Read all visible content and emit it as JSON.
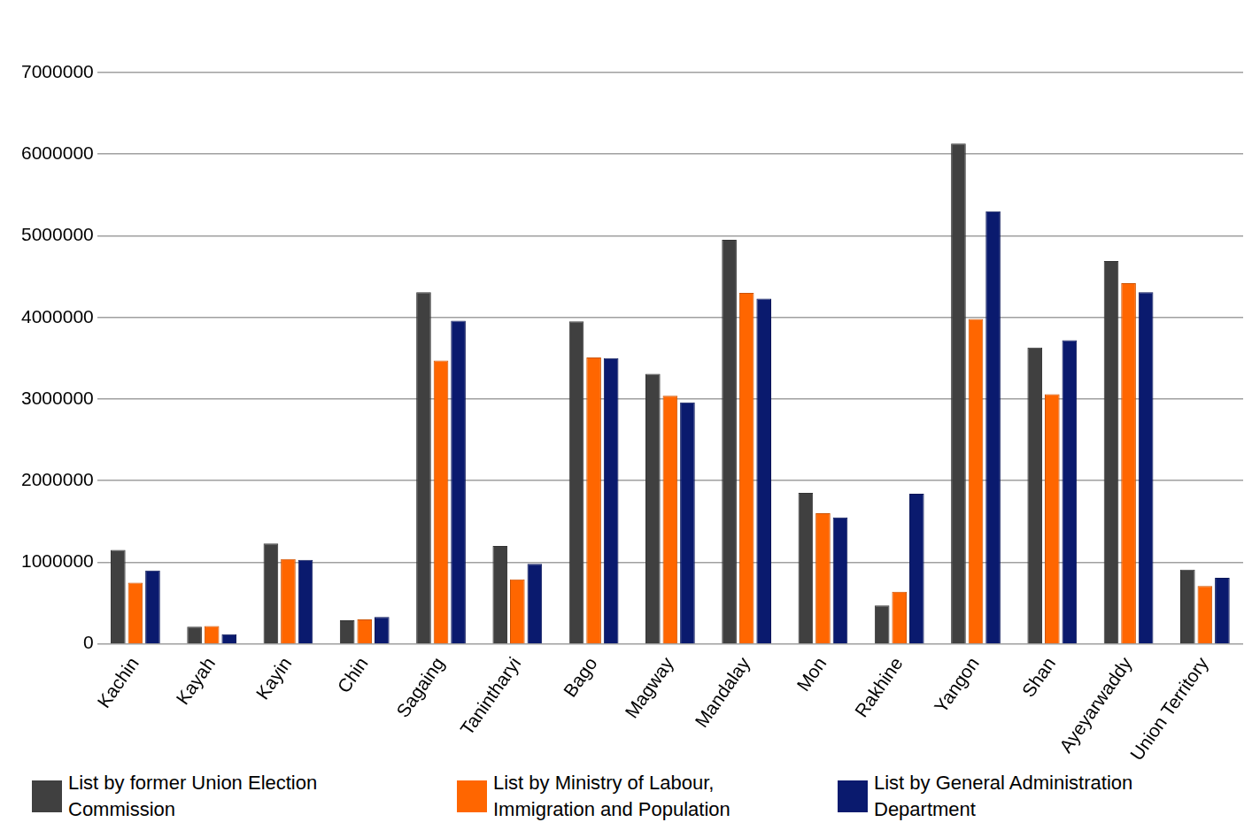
{
  "chart_data": {
    "type": "bar",
    "categories": [
      "Kachin",
      "Kayah",
      "Kayin",
      "Chin",
      "Sagaing",
      "Tanintharyi",
      "Bago",
      "Magway",
      "Mandalay",
      "Mon",
      "Rakhine",
      "Yangon",
      "Shan",
      "Ayeyarwaddy",
      "Union Territory"
    ],
    "series": [
      {
        "name": "List by former Union Election Commission",
        "color": "#404040",
        "values": [
          1150000,
          210000,
          1230000,
          290000,
          4310000,
          1200000,
          3950000,
          3310000,
          4950000,
          1850000,
          470000,
          6130000,
          3630000,
          4690000,
          910000
        ]
      },
      {
        "name": "List by Ministry of Labour, Immigration and Population",
        "color": "#ff6600",
        "values": [
          750000,
          220000,
          1040000,
          300000,
          3470000,
          790000,
          3510000,
          3040000,
          4300000,
          1600000,
          640000,
          3980000,
          3060000,
          4420000,
          710000
        ]
      },
      {
        "name": "List by General Administration Department",
        "color": "#0a1a6e",
        "values": [
          900000,
          120000,
          1030000,
          330000,
          3960000,
          980000,
          3500000,
          2960000,
          4230000,
          1550000,
          1840000,
          5300000,
          3720000,
          4310000,
          810000
        ]
      }
    ],
    "ylim": [
      0,
      7000000
    ],
    "yticks": [
      0,
      1000000,
      2000000,
      3000000,
      4000000,
      5000000,
      6000000,
      7000000
    ],
    "grid": true,
    "legend": "bottom"
  }
}
